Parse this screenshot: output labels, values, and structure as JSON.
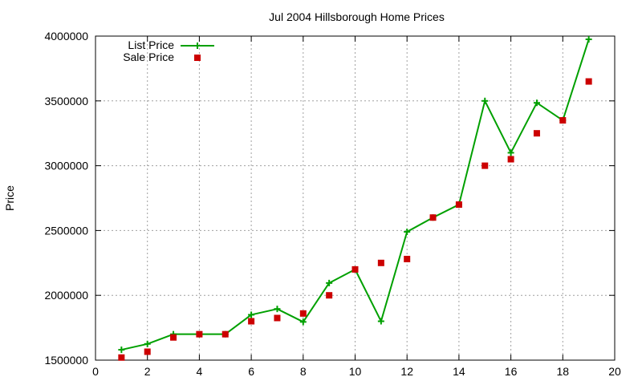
{
  "chart_data": {
    "type": "line",
    "title": "Jul 2004 Hillsborough Home Prices",
    "xlabel": "",
    "ylabel": "Price",
    "xlim": [
      0,
      20
    ],
    "ylim": [
      1500000,
      4000000
    ],
    "x_ticks": [
      0,
      2,
      4,
      6,
      8,
      10,
      12,
      14,
      16,
      18,
      20
    ],
    "y_ticks": [
      1500000,
      2000000,
      2500000,
      3000000,
      3500000,
      4000000
    ],
    "x_tick_labels": [
      "0",
      "2",
      "4",
      "6",
      "8",
      "10",
      "12",
      "14",
      "16",
      "18",
      "20"
    ],
    "y_tick_labels": [
      "1500000",
      "2000000",
      "2500000",
      "3000000",
      "3500000",
      "4000000"
    ],
    "grid": true,
    "legend_position": "top-left",
    "x": [
      1,
      2,
      3,
      4,
      5,
      6,
      7,
      8,
      9,
      10,
      11,
      12,
      13,
      14,
      15,
      16,
      17,
      18,
      19
    ],
    "series": [
      {
        "name": "List Price",
        "style": "line-points",
        "color": "#00a000",
        "values": [
          1580000,
          1625000,
          1700000,
          1700000,
          1700000,
          1850000,
          1895000,
          1795000,
          2095000,
          2200000,
          1800000,
          2490000,
          2600000,
          2700000,
          3500000,
          3100000,
          3485000,
          3350000,
          3975000
        ]
      },
      {
        "name": "Sale Price",
        "style": "points",
        "color": "#cc0000",
        "values": [
          1520000,
          1565000,
          1675000,
          1700000,
          1700000,
          1800000,
          1825000,
          1860000,
          2000000,
          2200000,
          2250000,
          2280000,
          2600000,
          2700000,
          3000000,
          3050000,
          3250000,
          3350000,
          3650000
        ]
      }
    ]
  }
}
